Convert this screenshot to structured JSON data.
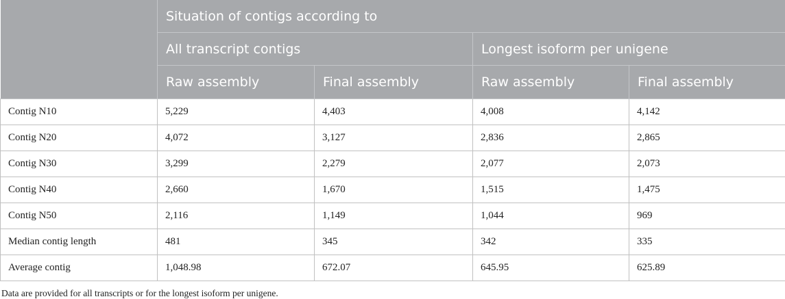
{
  "header": {
    "group_title": "Situation of contigs according to",
    "subgroups": [
      "All transcript contigs",
      "Longest isoform per unigene"
    ],
    "columns": [
      "Raw assembly",
      "Final assembly",
      "Raw assembly",
      "Final assembly"
    ]
  },
  "rows": [
    {
      "label": "Contig N10",
      "values": [
        "5,229",
        "4,403",
        "4,008",
        "4,142"
      ]
    },
    {
      "label": "Contig N20",
      "values": [
        "4,072",
        "3,127",
        "2,836",
        "2,865"
      ]
    },
    {
      "label": "Contig N30",
      "values": [
        "3,299",
        "2,279",
        "2,077",
        "2,073"
      ]
    },
    {
      "label": "Contig N40",
      "values": [
        "2,660",
        "1,670",
        "1,515",
        "1,475"
      ]
    },
    {
      "label": "Contig N50",
      "values": [
        "2,116",
        "1,149",
        "1,044",
        "969"
      ]
    },
    {
      "label": "Median contig length",
      "values": [
        "481",
        "345",
        "342",
        "335"
      ]
    },
    {
      "label": "Average contig",
      "values": [
        "1,048.98",
        "672.07",
        "645.95",
        "625.89"
      ]
    }
  ],
  "footnote": "Data are provided for all transcripts or for the longest isoform per unigene."
}
